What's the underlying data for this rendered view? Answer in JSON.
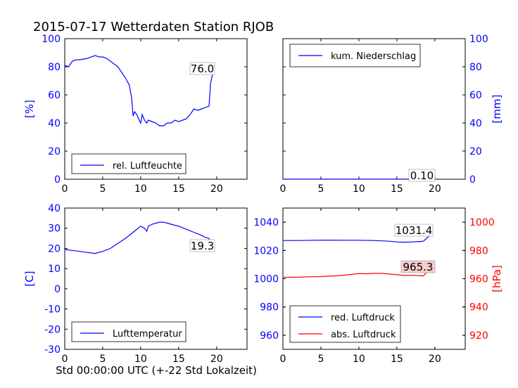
{
  "title": "2015-07-17 Wetterdaten Station RJOB",
  "footer_label": "Std 00:00:00 UTC (+-22 Std Lokalzeit)",
  "colors": {
    "blue": "#0000ff",
    "red": "#ff0000",
    "black": "#000000"
  },
  "chart_data": [
    {
      "type": "line",
      "panel": "top-left",
      "xlim": [
        0,
        24
      ],
      "ylim": [
        0,
        100
      ],
      "x_ticks": [
        "0",
        "5",
        "10",
        "15",
        "20"
      ],
      "y_ticks": [
        "0",
        "20",
        "40",
        "60",
        "80",
        "100"
      ],
      "ylabel": "[%]",
      "legend_placement": "lower-left",
      "series": [
        {
          "name": "rel. Luftfeuchte",
          "color": "#0000ff",
          "x": [
            0,
            0.5,
            1,
            1.5,
            2,
            3,
            4,
            4.5,
            5,
            5.5,
            6,
            6.5,
            7,
            7.5,
            8,
            8.5,
            8.8,
            9,
            9.2,
            9.5,
            9.8,
            10,
            10.2,
            10.5,
            10.8,
            11,
            11.5,
            12,
            12.5,
            13,
            13.5,
            14,
            14.5,
            15,
            15.5,
            16,
            16.5,
            17,
            17.5,
            18,
            18.5,
            19,
            19.2,
            19.5
          ],
          "y": [
            81,
            80,
            84,
            85,
            85,
            86,
            88,
            87,
            87,
            86,
            84,
            82,
            80,
            76,
            72,
            67,
            58,
            45,
            48,
            46,
            42,
            40,
            46,
            42,
            40,
            42,
            41,
            40,
            38,
            38,
            40,
            40,
            42,
            41,
            42,
            43,
            46,
            50,
            49,
            50,
            51,
            52,
            68,
            76
          ]
        }
      ],
      "annotation": "76.0"
    },
    {
      "type": "line",
      "panel": "top-right",
      "xlim": [
        0,
        24
      ],
      "ylim": [
        0,
        100
      ],
      "x_ticks": [
        "0",
        "5",
        "10",
        "15",
        "20"
      ],
      "y_ticks": [
        "0",
        "20",
        "40",
        "60",
        "80",
        "100"
      ],
      "ylabel": "[mm]",
      "legend_placement": "upper-left",
      "series": [
        {
          "name": "kum. Niederschlag",
          "color": "#0000ff",
          "x": [
            0,
            19.5
          ],
          "y": [
            0.1,
            0.1
          ]
        }
      ],
      "annotation": "0.10"
    },
    {
      "type": "line",
      "panel": "bottom-left",
      "xlim": [
        0,
        24
      ],
      "ylim": [
        -30,
        40
      ],
      "x_ticks": [
        "0",
        "5",
        "10",
        "15",
        "20"
      ],
      "y_ticks": [
        "-30",
        "-20",
        "-10",
        "0",
        "10",
        "20",
        "30",
        "40"
      ],
      "ylabel": "[C]",
      "legend_placement": "lower-left",
      "series": [
        {
          "name": "Lufttemperatur",
          "color": "#0000ff",
          "x": [
            0,
            1,
            2,
            3,
            4,
            5,
            6,
            7,
            8,
            9,
            9.5,
            10,
            10.5,
            10.8,
            11,
            11.5,
            12,
            12.5,
            13,
            13.5,
            14,
            15,
            16,
            17,
            18,
            18.5,
            19,
            19.5
          ],
          "y": [
            19.5,
            19,
            18.5,
            18,
            17.5,
            18.5,
            20,
            22.5,
            25,
            28,
            29.5,
            31,
            30,
            28.5,
            31,
            32,
            32.5,
            33,
            33,
            32.5,
            32,
            31,
            29.5,
            28,
            26.5,
            25.5,
            25,
            19.3
          ]
        }
      ],
      "annotation": "19.3"
    },
    {
      "type": "line",
      "panel": "bottom-right",
      "xlim": [
        0,
        24
      ],
      "ylim_left": [
        950,
        1050
      ],
      "ylim_right": [
        910,
        1010
      ],
      "x_ticks": [
        "0",
        "5",
        "10",
        "15",
        "20"
      ],
      "y_ticks_left": [
        "960",
        "980",
        "1000",
        "1020",
        "1040"
      ],
      "y_ticks_right": [
        "920",
        "940",
        "960",
        "980",
        "1000"
      ],
      "ylabel_right": "[hPa]",
      "legend_placement": "lower-left",
      "series": [
        {
          "name": "red. Luftdruck",
          "color": "#0000ff",
          "axis": "left",
          "x": [
            0,
            2,
            4,
            6,
            8,
            10,
            12,
            14,
            15,
            16,
            17,
            18,
            18.5,
            19,
            19.5
          ],
          "y": [
            1027,
            1027,
            1027.2,
            1027.3,
            1027.2,
            1027.2,
            1027,
            1026.5,
            1026,
            1025.8,
            1026,
            1026.3,
            1026.5,
            1029,
            1031.4
          ]
        },
        {
          "name": "abs. Luftdruck",
          "color": "#ff0000",
          "axis": "right",
          "x": [
            0,
            2,
            3,
            4,
            5,
            6,
            7,
            8,
            9,
            10,
            11,
            12,
            13,
            14,
            15,
            16,
            17,
            18,
            18.5,
            19,
            19.5
          ],
          "y": [
            961,
            961,
            961.3,
            961.4,
            961.5,
            961.8,
            962,
            962.5,
            963,
            963.7,
            963.5,
            963.8,
            963.8,
            963.3,
            962.8,
            962.3,
            962.4,
            962.2,
            962,
            965,
            965.3
          ]
        }
      ],
      "annotations": [
        "1031.4",
        "965.3"
      ]
    }
  ]
}
